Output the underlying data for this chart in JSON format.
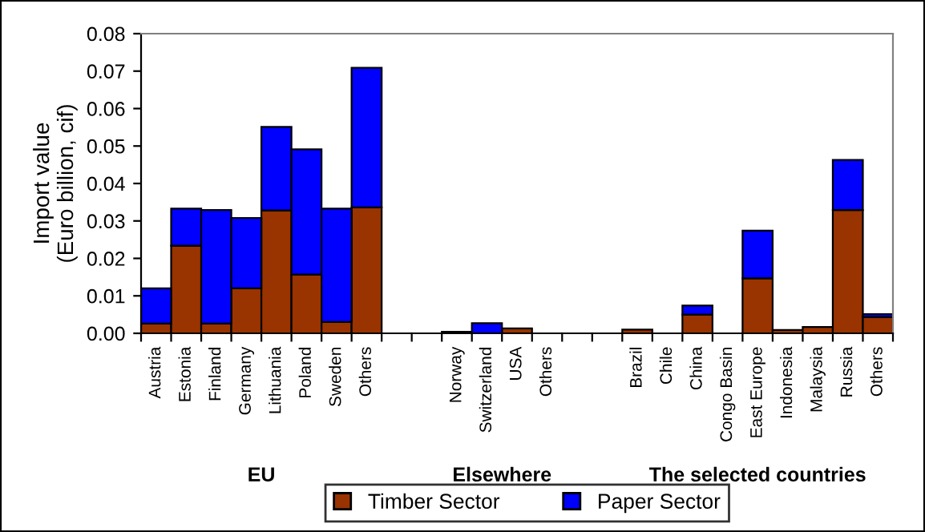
{
  "chart_data": {
    "type": "bar",
    "stacked": true,
    "ylabel": "Import value\n(Euro billion, cif)",
    "categories": [
      "Austria",
      "Estonia",
      "Finland",
      "Germany",
      "Lithuania",
      "Poland",
      "Sweden",
      "Others",
      null,
      null,
      "Norway",
      "Switzerland",
      "USA",
      "Others",
      null,
      null,
      "Brazil",
      "Chile",
      "China",
      "Congo Basin",
      "East Europe",
      "Indonesia",
      "Malaysia",
      "Russia",
      "Others"
    ],
    "series": [
      {
        "name": "Timber Sector",
        "color": "#993300",
        "values": [
          0.0026,
          0.0234,
          0.0026,
          0.012,
          0.0328,
          0.0157,
          0.003,
          0.0336,
          null,
          null,
          0.0004,
          null,
          0.0013,
          null,
          null,
          null,
          0.001,
          null,
          0.005,
          null,
          0.0147,
          0.0009,
          0.0017,
          0.0329,
          0.0043
        ]
      },
      {
        "name": "Paper Sector",
        "color": "#0000ff",
        "values": [
          0.0094,
          0.0099,
          0.0303,
          0.0188,
          0.0223,
          0.0334,
          0.0303,
          0.0373,
          null,
          null,
          null,
          0.0027,
          null,
          null,
          null,
          null,
          null,
          null,
          0.0024,
          null,
          0.0127,
          null,
          null,
          0.0134,
          0.0008
        ]
      }
    ],
    "ylim": [
      0,
      0.08
    ],
    "yticks": [
      {
        "value": 0,
        "label": "0.00"
      },
      0.01,
      0.02,
      0.03,
      0.04,
      0.05,
      0.06,
      0.07,
      0.08
    ],
    "annotations": [
      "EU",
      "Elsewhere",
      "The selected countries"
    ],
    "grid": false,
    "legend": "bottom"
  }
}
